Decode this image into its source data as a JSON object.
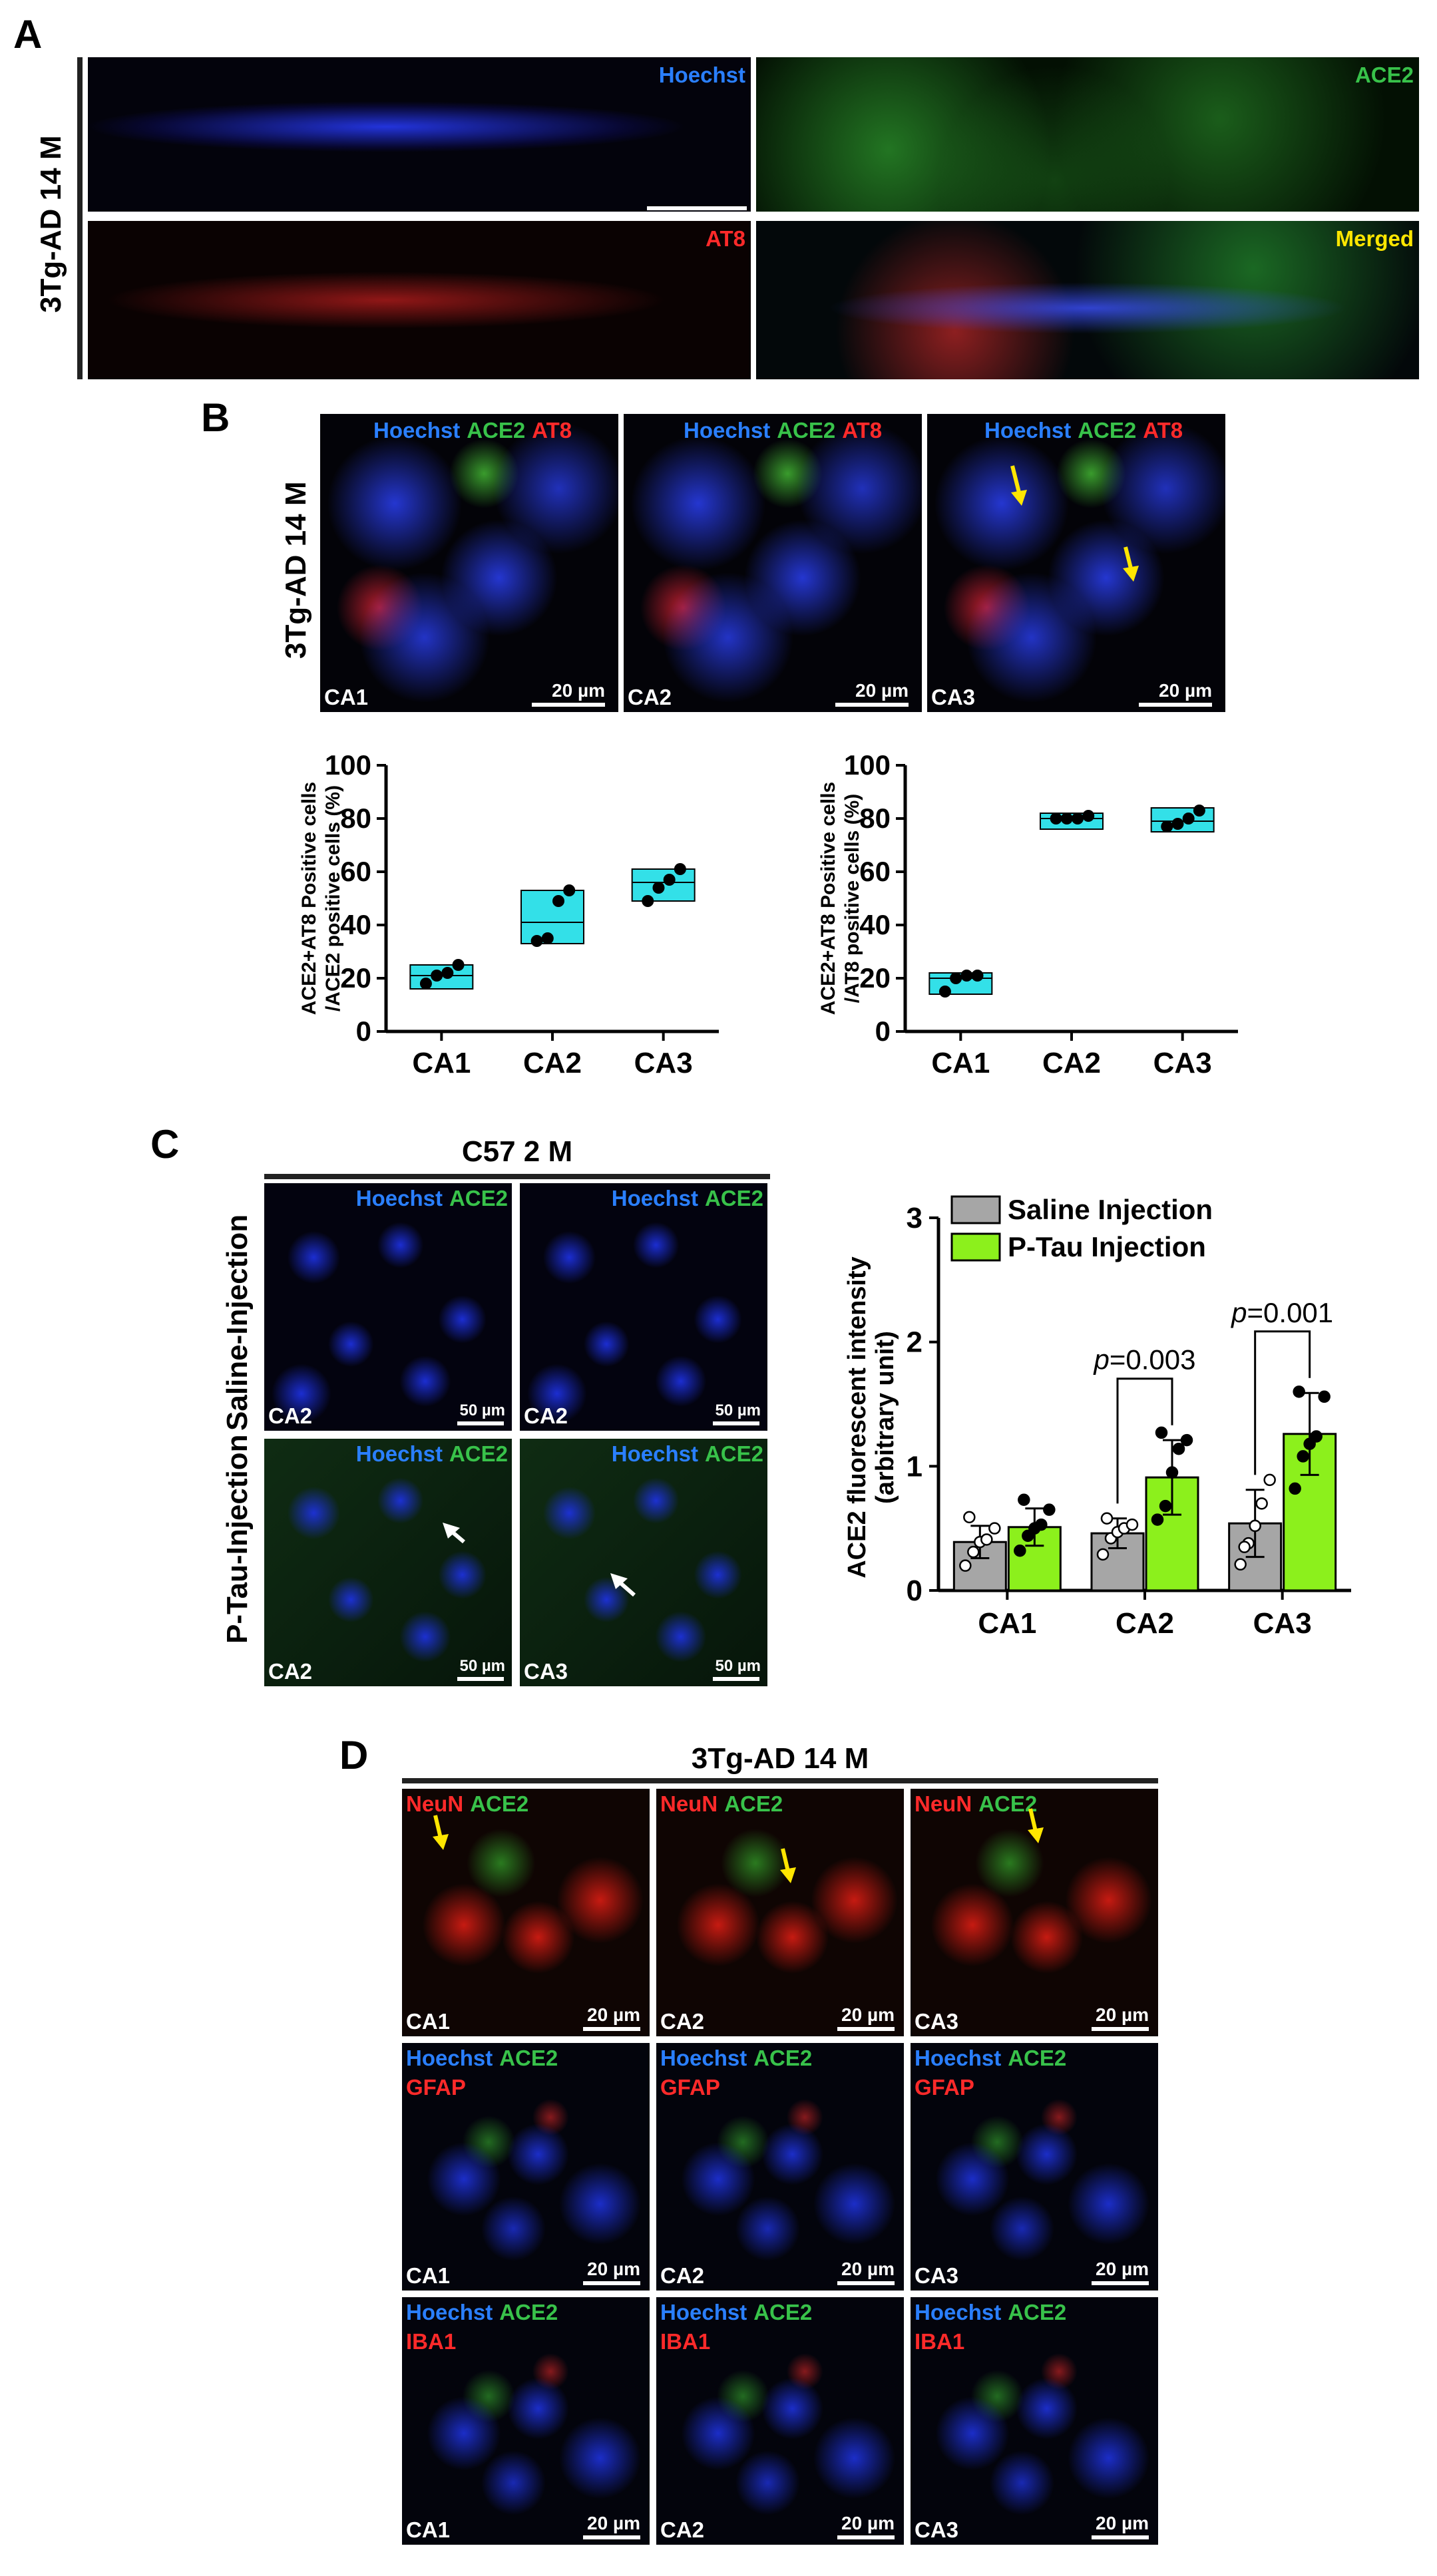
{
  "panels": {
    "a": {
      "letter": "A",
      "row_label": "3Tg-AD 14 M",
      "images": [
        {
          "stain": "Hoechst",
          "color": "#2a7fff"
        },
        {
          "stain": "ACE2",
          "color": "#38c24a"
        },
        {
          "stain": "AT8",
          "color": "#ff2a2a"
        },
        {
          "stain": "Merged",
          "color": "#ffe600"
        }
      ]
    },
    "b": {
      "letter": "B",
      "row_label": "3Tg-AD 14 M",
      "stain_hoechst": "Hoechst",
      "stain_ace2": "ACE2",
      "stain_at8": "AT8",
      "images": [
        {
          "region": "CA1",
          "scale": "20 µm"
        },
        {
          "region": "CA2",
          "scale": "20 µm"
        },
        {
          "region": "CA3",
          "scale": "20 µm"
        }
      ]
    },
    "c": {
      "letter": "C",
      "header": "C57 2 M",
      "row_labels": [
        "Saline-Injection",
        "P-Tau-Injection"
      ],
      "stain_hoechst": "Hoechst",
      "stain_ace2": "ACE2",
      "images": [
        {
          "region": "CA2",
          "scale": "50 µm"
        },
        {
          "region": "CA2",
          "scale": "50 µm"
        },
        {
          "region": "CA2",
          "scale": "50 µm"
        },
        {
          "region": "CA3",
          "scale": "50 µm"
        }
      ]
    },
    "d": {
      "letter": "D",
      "header": "3Tg-AD 14 M",
      "row_labels": {
        "row1": {
          "s1": "NeuN",
          "s2": "ACE2"
        },
        "row2": {
          "s1": "Hoechst",
          "s2": "ACE2",
          "s3": "GFAP"
        },
        "row3": {
          "s1": "Hoechst",
          "s2": "ACE2",
          "s3": "IBA1"
        }
      },
      "regions": [
        "CA1",
        "CA2",
        "CA3"
      ],
      "scale": "20 µm"
    }
  },
  "chart_data": [
    {
      "type": "box",
      "ylabel_line1": "ACE2+AT8 Positive cells",
      "ylabel_line2": "/ACE2 positive cells (%)",
      "categories": [
        "CA1",
        "CA2",
        "CA3"
      ],
      "ylim": [
        0,
        100
      ],
      "yticks": [
        0,
        20,
        40,
        60,
        80,
        100
      ],
      "box_color": "#33e0e8",
      "boxes": [
        {
          "category": "CA1",
          "q1": 16,
          "median": 21,
          "q3": 25
        },
        {
          "category": "CA2",
          "q1": 33,
          "median": 41,
          "q3": 53
        },
        {
          "category": "CA3",
          "q1": 49,
          "median": 56,
          "q3": 61
        }
      ],
      "points": [
        {
          "category": "CA1",
          "values": [
            18,
            21,
            22,
            25
          ]
        },
        {
          "category": "CA2",
          "values": [
            34,
            35,
            49,
            53
          ]
        },
        {
          "category": "CA3",
          "values": [
            49,
            54,
            57,
            61
          ]
        }
      ]
    },
    {
      "type": "box",
      "ylabel_line1": "ACE2+AT8 Positive cells",
      "ylabel_line2": "/AT8 positive cells (%)",
      "categories": [
        "CA1",
        "CA2",
        "CA3"
      ],
      "ylim": [
        0,
        100
      ],
      "yticks": [
        0,
        20,
        40,
        60,
        80,
        100
      ],
      "box_color": "#33e0e8",
      "boxes": [
        {
          "category": "CA1",
          "q1": 14,
          "median": 20,
          "q3": 22
        },
        {
          "category": "CA2",
          "q1": 76,
          "median": 80,
          "q3": 82
        },
        {
          "category": "CA3",
          "q1": 75,
          "median": 79,
          "q3": 84
        }
      ],
      "points": [
        {
          "category": "CA1",
          "values": [
            15,
            20,
            21,
            21
          ]
        },
        {
          "category": "CA2",
          "values": [
            80,
            80,
            80,
            81
          ]
        },
        {
          "category": "CA3",
          "values": [
            77,
            78,
            80,
            83
          ]
        }
      ]
    },
    {
      "type": "bar",
      "ylabel_line1": "ACE2 fluorescent intensity",
      "ylabel_line2": "(arbitrary unit)",
      "categories": [
        "CA1",
        "CA2",
        "CA3"
      ],
      "ylim": [
        0,
        3
      ],
      "yticks": [
        0,
        1,
        2,
        3
      ],
      "legend_position": "top-left",
      "series": [
        {
          "name": "Saline Injection",
          "color": "#a6a6a6",
          "values": [
            0.39,
            0.46,
            0.54
          ],
          "sd": [
            0.13,
            0.12,
            0.27
          ],
          "points": [
            [
              0.2,
              0.31,
              0.39,
              0.41,
              0.5,
              0.59
            ],
            [
              0.29,
              0.42,
              0.47,
              0.5,
              0.53,
              0.58
            ],
            [
              0.21,
              0.38,
              0.52,
              0.7,
              0.89,
              0.35
            ]
          ]
        },
        {
          "name": "P-Tau Injection",
          "color": "#8cf01c",
          "values": [
            0.51,
            0.91,
            1.26
          ],
          "sd": [
            0.15,
            0.3,
            0.33
          ],
          "points": [
            [
              0.32,
              0.44,
              0.5,
              0.53,
              0.65,
              0.73
            ],
            [
              0.57,
              0.68,
              0.95,
              1.14,
              1.21,
              1.27
            ],
            [
              0.82,
              1.08,
              1.18,
              1.24,
              1.56,
              1.6
            ]
          ]
        }
      ],
      "annotations": [
        {
          "between": "CA2",
          "p_label": "p",
          "p_value": "=0.003"
        },
        {
          "between": "CA3",
          "p_label": "p",
          "p_value": "=0.001"
        }
      ]
    }
  ]
}
